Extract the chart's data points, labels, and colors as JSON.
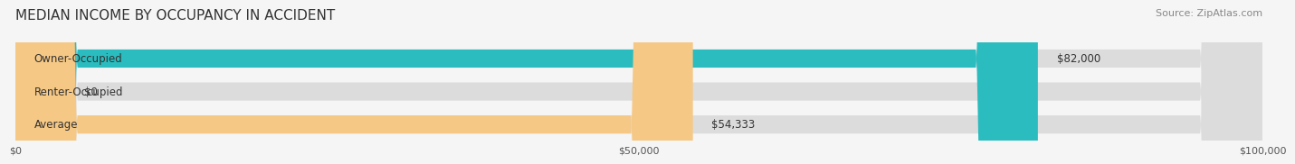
{
  "title": "MEDIAN INCOME BY OCCUPANCY IN ACCIDENT",
  "source": "Source: ZipAtlas.com",
  "categories": [
    "Owner-Occupied",
    "Renter-Occupied",
    "Average"
  ],
  "values": [
    82000,
    0,
    54333
  ],
  "labels": [
    "$82,000",
    "$0",
    "$54,333"
  ],
  "bar_colors": [
    "#2abcbe",
    "#b8a0cc",
    "#f5c885"
  ],
  "bar_background_color": "#e8e8e8",
  "background_color": "#f5f5f5",
  "xlim": [
    0,
    100000
  ],
  "xticks": [
    0,
    50000,
    100000
  ],
  "xtick_labels": [
    "$0",
    "$50,000",
    "$100,000"
  ],
  "title_fontsize": 11,
  "source_fontsize": 8,
  "label_fontsize": 8.5,
  "bar_label_fontsize": 8.5,
  "bar_height": 0.55,
  "bar_gap": 0.15
}
